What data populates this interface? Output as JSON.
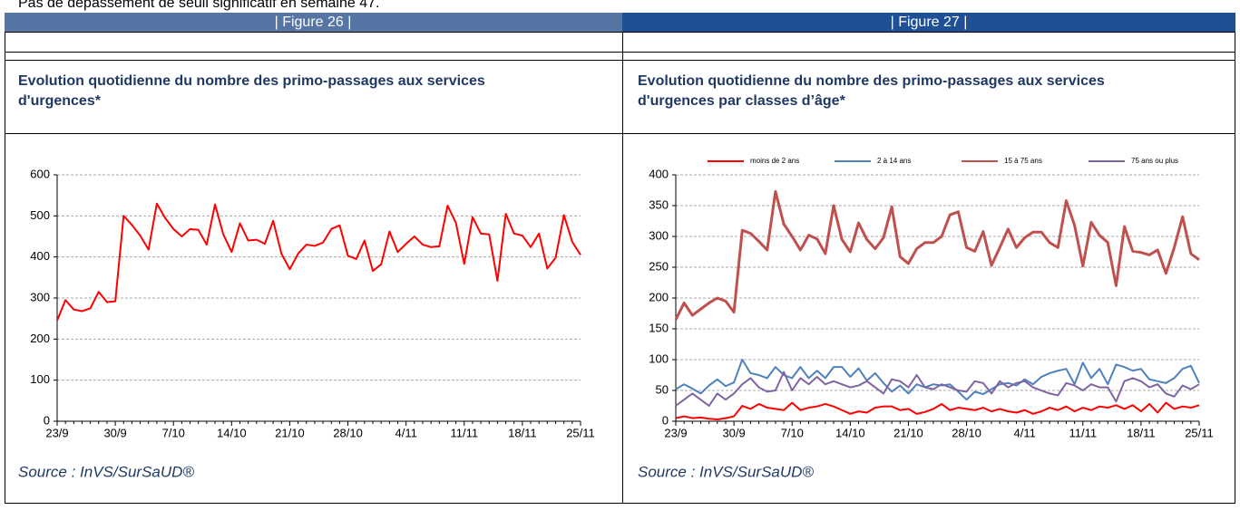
{
  "intro": "Pas de dépassement de seuil significatif en semaine 47.",
  "figures": [
    {
      "label": "| Figure 26 |",
      "title": [
        "Evolution quotidienne du nombre des primo-passages aux services",
        "d'urgences*"
      ],
      "source": "Source : InVS/SurSaUD®"
    },
    {
      "label": "| Figure 27 |",
      "title": [
        "Evolution quotidienne du nombre des primo-passages aux services",
        "d'urgences  par classes d’âge*"
      ],
      "source": "Source : InVS/SurSaUD®"
    }
  ],
  "chart_data": [
    {
      "type": "line",
      "categories": [
        "23/9",
        null,
        null,
        null,
        null,
        null,
        null,
        "30/9",
        null,
        null,
        null,
        null,
        null,
        null,
        "7/10",
        null,
        null,
        null,
        null,
        null,
        null,
        "14/10",
        null,
        null,
        null,
        null,
        null,
        null,
        "21/10",
        null,
        null,
        null,
        null,
        null,
        null,
        "28/10",
        null,
        null,
        null,
        null,
        null,
        null,
        "4/11",
        null,
        null,
        null,
        null,
        null,
        null,
        "11/11",
        null,
        null,
        null,
        null,
        null,
        null,
        "18/11",
        null,
        null,
        null,
        null,
        null,
        null,
        "25/11"
      ],
      "series": [
        {
          "color": "#ff0000",
          "values": [
            245,
            295,
            272,
            268,
            275,
            315,
            290,
            292,
            500,
            478,
            452,
            418,
            530,
            495,
            468,
            450,
            468,
            466,
            430,
            528,
            455,
            412,
            482,
            440,
            442,
            432,
            488,
            408,
            370,
            408,
            430,
            427,
            435,
            468,
            477,
            403,
            395,
            440,
            366,
            382,
            462,
            412,
            432,
            450,
            430,
            424,
            426,
            525,
            483,
            383,
            497,
            457,
            455,
            342,
            505,
            457,
            452,
            424,
            457,
            372,
            398,
            502,
            437,
            405
          ]
        }
      ],
      "ylim": [
        0,
        600
      ],
      "yticks": [
        0,
        100,
        200,
        300,
        400,
        500,
        600
      ],
      "grid": true
    },
    {
      "type": "line",
      "categories": [
        "23/9",
        null,
        null,
        null,
        null,
        null,
        null,
        "30/9",
        null,
        null,
        null,
        null,
        null,
        null,
        "7/10",
        null,
        null,
        null,
        null,
        null,
        null,
        "14/10",
        null,
        null,
        null,
        null,
        null,
        null,
        "21/10",
        null,
        null,
        null,
        null,
        null,
        null,
        "28/10",
        null,
        null,
        null,
        null,
        null,
        null,
        "4/11",
        null,
        null,
        null,
        null,
        null,
        null,
        "11/11",
        null,
        null,
        null,
        null,
        null,
        null,
        "18/11",
        null,
        null,
        null,
        null,
        null,
        null,
        "25/11"
      ],
      "series": [
        {
          "name": "moins de 2 ans",
          "color": "#ff0000",
          "values": [
            5,
            8,
            5,
            6,
            4,
            3,
            5,
            8,
            25,
            20,
            28,
            22,
            20,
            18,
            30,
            18,
            22,
            24,
            28,
            24,
            18,
            12,
            16,
            14,
            22,
            24,
            24,
            18,
            20,
            12,
            15,
            20,
            28,
            18,
            22,
            20,
            18,
            22,
            16,
            20,
            16,
            14,
            18,
            12,
            16,
            22,
            18,
            24,
            16,
            22,
            18,
            24,
            22,
            26,
            20,
            26,
            16,
            28,
            14,
            30,
            20,
            24,
            22,
            26
          ]
        },
        {
          "name": "2 à 14 ans",
          "color": "#4f81bd",
          "values": [
            52,
            60,
            53,
            45,
            58,
            68,
            57,
            63,
            100,
            78,
            75,
            70,
            88,
            75,
            70,
            88,
            70,
            82,
            70,
            88,
            88,
            72,
            86,
            66,
            78,
            62,
            48,
            58,
            45,
            60,
            55,
            60,
            58,
            60,
            48,
            35,
            48,
            44,
            52,
            60,
            62,
            58,
            68,
            60,
            72,
            78,
            82,
            85,
            60,
            95,
            70,
            85,
            60,
            92,
            88,
            82,
            85,
            68,
            65,
            62,
            70,
            85,
            90,
            62
          ]
        },
        {
          "name": "15 à 75 ans",
          "color": "#c0504d",
          "values": [
            165,
            192,
            172,
            182,
            192,
            200,
            195,
            177,
            310,
            305,
            292,
            278,
            373,
            320,
            300,
            278,
            302,
            296,
            272,
            350,
            295,
            275,
            322,
            295,
            280,
            298,
            348,
            267,
            256,
            280,
            290,
            290,
            300,
            335,
            340,
            282,
            276,
            308,
            253,
            282,
            312,
            282,
            298,
            307,
            307,
            290,
            282,
            358,
            318,
            252,
            323,
            302,
            290,
            220,
            316,
            276,
            274,
            270,
            278,
            240,
            282,
            332,
            272,
            262
          ]
        },
        {
          "name": "75 ans ou plus",
          "color": "#8064a2",
          "values": [
            25,
            35,
            45,
            35,
            25,
            45,
            35,
            45,
            60,
            70,
            55,
            48,
            50,
            80,
            50,
            70,
            60,
            72,
            60,
            65,
            60,
            55,
            58,
            65,
            55,
            45,
            68,
            65,
            55,
            75,
            55,
            52,
            60,
            55,
            50,
            48,
            65,
            62,
            45,
            65,
            55,
            62,
            65,
            55,
            50,
            45,
            42,
            62,
            58,
            50,
            60,
            55,
            55,
            32,
            65,
            70,
            65,
            55,
            60,
            45,
            40,
            58,
            52,
            60
          ]
        }
      ],
      "ylim": [
        0,
        400
      ],
      "yticks": [
        0,
        50,
        100,
        150,
        200,
        250,
        300,
        350,
        400
      ],
      "grid": true,
      "legend": "top"
    }
  ]
}
